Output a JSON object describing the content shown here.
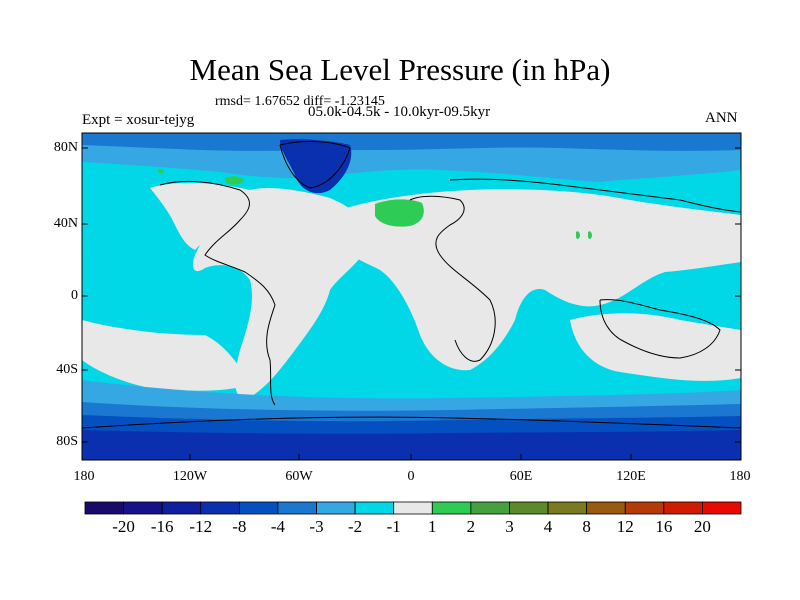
{
  "title": "Mean Sea Level Pressure (in hPa)",
  "stats_line": "rmsd= 1.67652 diff= -1.23145",
  "period_line": "05.0k-04.5k - 10.0kyr-09.5kyr",
  "experiment_line": "Expt = xosur-tejyg",
  "season": "ANN",
  "latitude_labels": [
    "80N",
    "40N",
    "0",
    "40S",
    "80S"
  ],
  "longitude_labels": [
    "180",
    "120W",
    "60W",
    "0",
    "60E",
    "120E",
    "180"
  ],
  "colorbar": {
    "labels": [
      "-20",
      "-16",
      "-12",
      "-8",
      "-4",
      "-3",
      "-2",
      "-1",
      "1",
      "2",
      "3",
      "4",
      "8",
      "12",
      "16",
      "20"
    ],
    "colors": [
      "#1a0a6b",
      "#16128a",
      "#0f1fa0",
      "#0a30b0",
      "#0550c0",
      "#1a78d0",
      "#35a8e4",
      "#00d8e8",
      "#e8e8e8",
      "#2ecc55",
      "#45a040",
      "#5c8a2a",
      "#7a7a20",
      "#9a5a10",
      "#b43a08",
      "#d01c00",
      "#e80a00"
    ]
  },
  "palette": {
    "ocean_neutral": "#00d8e8",
    "land_neutral": "#e8e8e8",
    "light_blue": "#35a8e4",
    "mid_blue": "#1a78d0",
    "blue": "#0550c0",
    "deep_blue": "#0a30b0",
    "positive_green": "#2ecc55",
    "frame": "#000000"
  }
}
